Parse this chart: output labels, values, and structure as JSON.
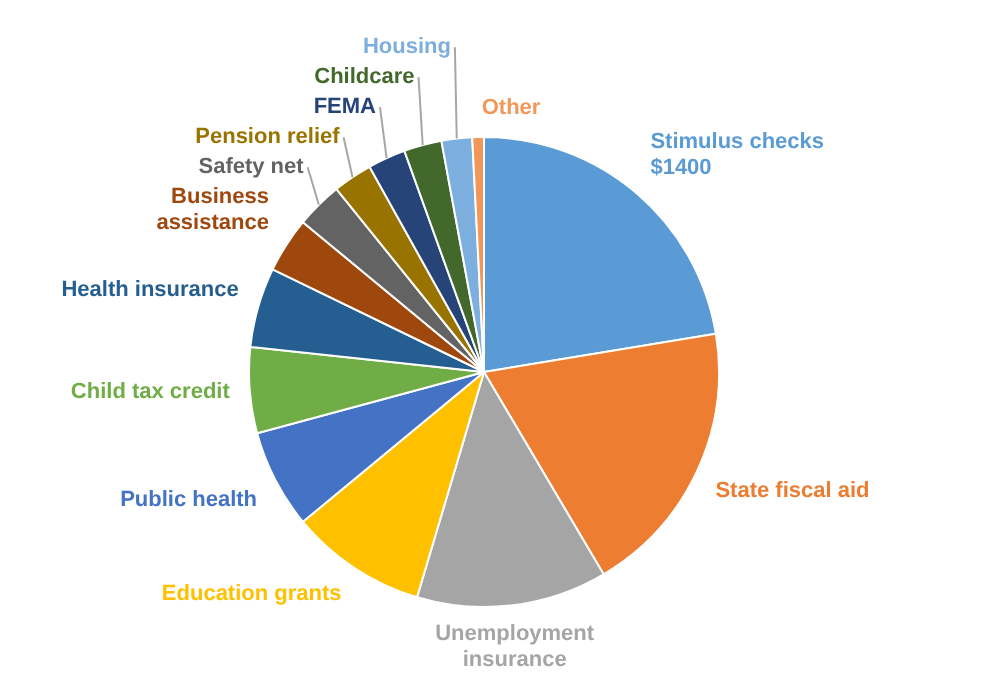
{
  "chart_data": {
    "type": "pie",
    "categories": [
      "Stimulus checks $1400",
      "State fiscal aid",
      "Unemployment insurance",
      "Education grants",
      "Public health",
      "Child tax credit",
      "Health insurance",
      "Business assistance",
      "Safety net",
      "Pension relief",
      "FEMA",
      "Childcare",
      "Housing",
      "Other"
    ],
    "values": [
      22.4,
      19.1,
      13.1,
      9.4,
      6.8,
      5.9,
      5.5,
      3.8,
      3.2,
      2.7,
      2.6,
      2.6,
      2.1,
      0.8
    ],
    "colors": [
      "#5b9bd5",
      "#ed7d31",
      "#a5a5a5",
      "#ffc000",
      "#4472c4",
      "#70ad47",
      "#255e91",
      "#9e480e",
      "#636363",
      "#997300",
      "#264478",
      "#43682b",
      "#7cafdd",
      "#f1975a"
    ]
  }
}
